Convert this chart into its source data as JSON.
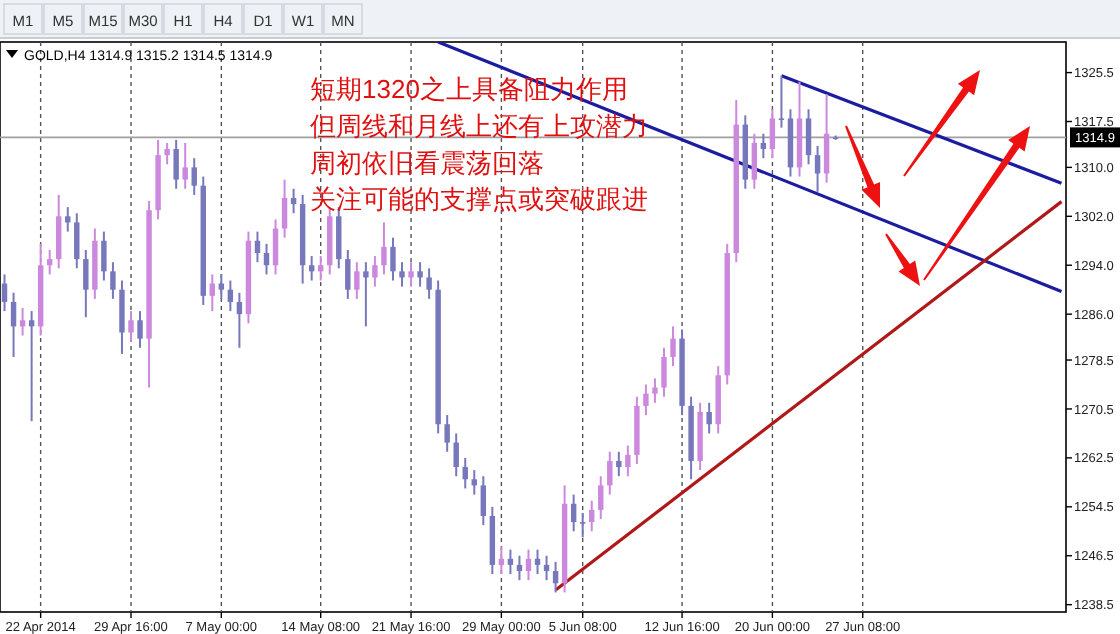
{
  "chart_data": {
    "type": "candlestick",
    "title": "GOLD,H4 1314.9 1315.2 1314.5 1314.9",
    "annotations": [
      "短期1320之上具备阻力作用",
      "但周线和月线上还有上攻潜力",
      "周初依旧看震荡回落",
      "关注可能的支撑点或突破跟进",
      "M1",
      "M5",
      "M15",
      "M30",
      "H1",
      "H4",
      "D1",
      "W1",
      "MN"
    ],
    "series": [
      {
        "ohlc": [
          [
            1291,
            1292.5,
            1286.5,
            1288
          ],
          [
            1288,
            1289.5,
            1279,
            1284
          ],
          [
            1284,
            1287,
            1282.5,
            1285
          ],
          [
            1285,
            1286.5,
            1268.5,
            1284
          ],
          [
            1284,
            1297.5,
            1282.5,
            1294
          ],
          [
            1294,
            1296.5,
            1292.5,
            1295
          ],
          [
            1295,
            1305.5,
            1293.5,
            1302
          ],
          [
            1302,
            1303.5,
            1299.5,
            1301
          ],
          [
            1301,
            1302.5,
            1293.5,
            1295
          ],
          [
            1295,
            1296.5,
            1285.5,
            1290
          ],
          [
            1290,
            1300,
            1288.5,
            1298
          ],
          [
            1298,
            1299.5,
            1291.5,
            1293
          ],
          [
            1293,
            1294.5,
            1288.5,
            1290
          ],
          [
            1290,
            1291.5,
            1279.5,
            1283
          ],
          [
            1283,
            1286.5,
            1281.5,
            1285
          ],
          [
            1285,
            1286.5,
            1280.5,
            1282
          ],
          [
            1282,
            1304.5,
            1274,
            1303
          ],
          [
            1303,
            1314.5,
            1301.5,
            1312
          ],
          [
            1312,
            1314,
            1310.5,
            1313
          ],
          [
            1313,
            1314.5,
            1306.5,
            1308
          ],
          [
            1308,
            1314,
            1306.5,
            1310
          ],
          [
            1310,
            1311.5,
            1305.5,
            1307
          ],
          [
            1307,
            1308.5,
            1287.5,
            1289
          ],
          [
            1289,
            1292.5,
            1286.5,
            1291
          ],
          [
            1291,
            1292.5,
            1288.5,
            1290
          ],
          [
            1290,
            1291.5,
            1286.5,
            1288
          ],
          [
            1288,
            1289.5,
            1280.5,
            1286
          ],
          [
            1286,
            1299.5,
            1284.5,
            1298
          ],
          [
            1298,
            1299.5,
            1294.5,
            1296
          ],
          [
            1296,
            1297.5,
            1292.5,
            1294
          ],
          [
            1294,
            1301.5,
            1292.5,
            1300
          ],
          [
            1300,
            1308,
            1298.5,
            1305
          ],
          [
            1305,
            1306.5,
            1302.5,
            1304
          ],
          [
            1304,
            1305.5,
            1291,
            1294
          ],
          [
            1294,
            1295.5,
            1291.5,
            1293
          ],
          [
            1293,
            1295.5,
            1291.5,
            1294
          ],
          [
            1294,
            1303.5,
            1292.5,
            1302
          ],
          [
            1302,
            1303.5,
            1293.5,
            1295
          ],
          [
            1295,
            1296.5,
            1288.5,
            1290
          ],
          [
            1290,
            1294.5,
            1288.5,
            1293
          ],
          [
            1293,
            1294.5,
            1284,
            1292
          ],
          [
            1292,
            1295.5,
            1290.5,
            1294
          ],
          [
            1294,
            1301,
            1292.5,
            1297
          ],
          [
            1297,
            1298.5,
            1291.5,
            1293
          ],
          [
            1293,
            1294.5,
            1290.5,
            1292
          ],
          [
            1292,
            1294.5,
            1290.5,
            1293
          ],
          [
            1293,
            1294.5,
            1290.5,
            1292
          ],
          [
            1292,
            1293.5,
            1288.5,
            1290
          ],
          [
            1290,
            1291.5,
            1266.5,
            1268
          ],
          [
            1268,
            1269.5,
            1263.5,
            1265
          ],
          [
            1265,
            1266.5,
            1259.5,
            1261
          ],
          [
            1261,
            1262.5,
            1257.5,
            1259
          ],
          [
            1259,
            1260.5,
            1256.5,
            1258
          ],
          [
            1258,
            1259.5,
            1251.5,
            1253
          ],
          [
            1253,
            1254.5,
            1243.5,
            1245
          ],
          [
            1245,
            1248,
            1243.5,
            1246
          ],
          [
            1246,
            1247.5,
            1243.5,
            1245
          ],
          [
            1245,
            1246.5,
            1242.5,
            1244
          ],
          [
            1244,
            1247.5,
            1242.5,
            1246
          ],
          [
            1246,
            1247.5,
            1243.5,
            1245
          ],
          [
            1245,
            1246.5,
            1242.5,
            1244
          ],
          [
            1244,
            1245.5,
            1240.5,
            1242
          ],
          [
            1242,
            1258,
            1240.5,
            1255
          ],
          [
            1255,
            1256.5,
            1250.5,
            1252
          ],
          [
            1252,
            1253.5,
            1249.5,
            1252
          ],
          [
            1252,
            1255.5,
            1250.5,
            1254
          ],
          [
            1254,
            1259.5,
            1252.5,
            1258
          ],
          [
            1258,
            1263.5,
            1256.5,
            1262
          ],
          [
            1262,
            1263.5,
            1259.5,
            1261
          ],
          [
            1261,
            1264.5,
            1259.5,
            1263
          ],
          [
            1263,
            1272.5,
            1261.5,
            1271
          ],
          [
            1271,
            1274.5,
            1269.5,
            1273
          ],
          [
            1273,
            1275.5,
            1271.5,
            1274
          ],
          [
            1274,
            1280.5,
            1272.5,
            1279
          ],
          [
            1279,
            1284,
            1277.5,
            1282
          ],
          [
            1282,
            1283.5,
            1269.5,
            1271
          ],
          [
            1271,
            1272.5,
            1259,
            1262
          ],
          [
            1262,
            1271.5,
            1260.5,
            1270
          ],
          [
            1270,
            1271.5,
            1266.5,
            1268
          ],
          [
            1268,
            1277.5,
            1266.5,
            1276
          ],
          [
            1276,
            1297.5,
            1274.5,
            1296
          ],
          [
            1296,
            1321,
            1294.5,
            1317
          ],
          [
            1317,
            1318.5,
            1306.5,
            1308
          ],
          [
            1308,
            1315.5,
            1306.5,
            1314
          ],
          [
            1314,
            1315.5,
            1311.5,
            1313
          ],
          [
            1313,
            1319.5,
            1311.5,
            1318
          ],
          [
            1318,
            1325,
            1316.5,
            1318
          ],
          [
            1318,
            1319.5,
            1308.5,
            1310
          ],
          [
            1310,
            1324,
            1308.5,
            1318
          ],
          [
            1318,
            1319.5,
            1310.5,
            1312
          ],
          [
            1312,
            1313.5,
            1306,
            1309
          ],
          [
            1309,
            1322,
            1307.5,
            1315.5
          ],
          [
            1314.9,
            1315.2,
            1314.5,
            1314.9
          ],
          null,
          null,
          null,
          null,
          null,
          null,
          null,
          null,
          null,
          null,
          null,
          null,
          null,
          null,
          null,
          null,
          null,
          null,
          null,
          null,
          null,
          null,
          null,
          null,
          null
        ],
        "colors": [
          "#7777bb",
          "#7777bb",
          "#cc88dd",
          "#7777bb",
          "#cc88dd",
          "#cc88dd",
          "#cc88dd",
          "#7777bb",
          "#7777bb",
          "#7777bb",
          "#cc88dd",
          "#7777bb",
          "#7777bb",
          "#7777bb",
          "#cc88dd",
          "#7777bb",
          "#cc88dd",
          "#cc88dd",
          "#cc88dd",
          "#7777bb",
          "#cc88dd",
          "#7777bb",
          "#7777bb",
          "#cc88dd",
          "#7777bb",
          "#7777bb",
          "#7777bb",
          "#cc88dd",
          "#7777bb",
          "#7777bb",
          "#cc88dd",
          "#cc88dd",
          "#7777bb",
          "#7777bb",
          "#7777bb",
          "#cc88dd",
          "#cc88dd",
          "#7777bb",
          "#7777bb",
          "#cc88dd",
          "#7777bb",
          "#cc88dd",
          "#cc88dd",
          "#7777bb",
          "#7777bb",
          "#cc88dd",
          "#7777bb",
          "#7777bb",
          "#7777bb",
          "#7777bb",
          "#7777bb",
          "#7777bb",
          "#7777bb",
          "#7777bb",
          "#7777bb",
          "#cc88dd",
          "#7777bb",
          "#7777bb",
          "#cc88dd",
          "#7777bb",
          "#7777bb",
          "#7777bb",
          "#cc88dd",
          "#7777bb",
          "#7777bb",
          "#cc88dd",
          "#cc88dd",
          "#cc88dd",
          "#7777bb",
          "#cc88dd",
          "#cc88dd",
          "#cc88dd",
          "#cc88dd",
          "#cc88dd",
          "#cc88dd",
          "#7777bb",
          "#7777bb",
          "#cc88dd",
          "#7777bb",
          "#cc88dd",
          "#cc88dd",
          "#cc88dd",
          "#7777bb",
          "#cc88dd",
          "#7777bb",
          "#cc88dd",
          "#7777bb",
          "#7777bb",
          "#cc88dd",
          "#7777bb",
          "#7777bb",
          "#cc88dd",
          "#7777bb",
          null,
          null,
          null,
          null,
          null,
          null,
          null,
          null,
          null,
          null,
          null,
          null,
          null,
          null,
          null,
          null,
          null,
          null,
          null,
          null,
          null,
          null,
          null,
          null,
          null
        ]
      },
      {
        "type": "line",
        "values": [
          null,
          null,
          null,
          null,
          null,
          null,
          null,
          null,
          null,
          null,
          null,
          null,
          null,
          null,
          null,
          null,
          null,
          null,
          null,
          null,
          null,
          null,
          null,
          null,
          null,
          null,
          null,
          null,
          null,
          null,
          null,
          null,
          null,
          null,
          null,
          null,
          null,
          null,
          null,
          null,
          null,
          null,
          null,
          null,
          null,
          null,
          null,
          null,
          1330.5,
          null,
          null,
          null,
          null,
          null,
          null,
          null,
          null,
          null,
          null,
          null,
          null,
          null,
          null,
          null,
          null,
          null,
          null,
          null,
          null,
          null,
          null,
          null,
          null,
          null,
          null,
          null,
          null,
          null,
          null,
          null,
          null,
          null,
          null,
          null,
          null,
          null,
          null,
          null,
          null,
          null,
          null,
          null,
          null,
          null,
          null,
          null,
          null,
          null,
          null,
          null,
          null,
          null,
          null,
          null,
          null,
          null,
          null,
          null,
          null,
          null,
          null,
          null,
          null,
          null,
          null,
          null,
          null,
          1289.7
        ],
        "color": "#1c1ca0"
      },
      {
        "type": "line",
        "values": [
          null,
          null,
          null,
          null,
          null,
          null,
          null,
          null,
          null,
          null,
          null,
          null,
          null,
          null,
          null,
          null,
          null,
          null,
          null,
          null,
          null,
          null,
          null,
          null,
          null,
          null,
          null,
          null,
          null,
          null,
          null,
          null,
          null,
          null,
          null,
          null,
          null,
          null,
          null,
          null,
          null,
          null,
          null,
          null,
          null,
          null,
          null,
          null,
          null,
          null,
          null,
          null,
          null,
          null,
          null,
          null,
          null,
          null,
          null,
          null,
          null,
          null,
          null,
          null,
          null,
          null,
          null,
          null,
          null,
          null,
          null,
          null,
          null,
          null,
          null,
          null,
          null,
          null,
          null,
          null,
          null,
          null,
          null,
          null,
          null,
          null,
          1325.0,
          null,
          null,
          null,
          null,
          null,
          null,
          null,
          null,
          null,
          null,
          null,
          null,
          null,
          null,
          null,
          null,
          null,
          null,
          null,
          null,
          null,
          null,
          null,
          null,
          null,
          null,
          null,
          null,
          null,
          null,
          1307.4
        ],
        "color": "#1c1ca0"
      },
      {
        "type": "line",
        "values": [
          null,
          null,
          null,
          null,
          null,
          null,
          null,
          null,
          null,
          null,
          null,
          null,
          null,
          null,
          null,
          null,
          null,
          null,
          null,
          null,
          null,
          null,
          null,
          null,
          null,
          null,
          null,
          null,
          null,
          null,
          null,
          null,
          null,
          null,
          null,
          null,
          null,
          null,
          null,
          null,
          null,
          null,
          null,
          null,
          null,
          null,
          null,
          null,
          null,
          null,
          null,
          null,
          null,
          null,
          null,
          null,
          null,
          null,
          null,
          null,
          null,
          1240.9,
          null,
          null,
          null,
          null,
          null,
          null,
          null,
          null,
          null,
          null,
          null,
          null,
          null,
          null,
          null,
          null,
          null,
          null,
          null,
          null,
          null,
          null,
          null,
          null,
          null,
          null,
          null,
          null,
          null,
          null,
          null,
          null,
          null,
          null,
          null,
          null,
          null,
          null,
          null,
          null,
          null,
          null,
          null,
          null,
          null,
          null,
          null,
          null,
          null,
          null,
          null,
          null,
          null,
          null,
          null,
          1304.4
        ],
        "color": "#b01818"
      }
    ],
    "categories": [
      null,
      null,
      null,
      null,
      "22 Apr 2014",
      null,
      null,
      null,
      null,
      null,
      null,
      null,
      null,
      null,
      "29 Apr 16:00",
      null,
      null,
      null,
      null,
      null,
      null,
      null,
      null,
      null,
      "7 May 00:00",
      null,
      null,
      null,
      null,
      null,
      null,
      null,
      null,
      null,
      null,
      "14 May 08:00",
      null,
      null,
      null,
      null,
      null,
      null,
      null,
      null,
      null,
      "21 May 16:00",
      null,
      null,
      null,
      null,
      null,
      null,
      null,
      null,
      null,
      "29 May 00:00",
      null,
      null,
      null,
      null,
      null,
      null,
      null,
      null,
      "5 Jun 08:00",
      null,
      null,
      null,
      null,
      null,
      null,
      null,
      null,
      null,
      null,
      "12 Jun 16:00",
      null,
      null,
      null,
      null,
      null,
      null,
      null,
      null,
      null,
      "20 Jun 00:00",
      null,
      null,
      null,
      null,
      null,
      null,
      null,
      null,
      null,
      "27 Jun 08:00",
      null,
      null,
      null,
      null,
      null,
      null,
      null,
      null,
      null,
      null,
      null,
      null,
      null,
      null,
      null,
      null,
      null,
      null,
      null,
      null,
      null,
      null
    ],
    "ylim": [
      1237.3,
      1330.5
    ],
    "yticks": [
      1238.5,
      1246.5,
      1254.5,
      1262.5,
      1270.5,
      1278.5,
      {
        "value": 1286,
        "label": "1286.0"
      },
      {
        "value": 1294,
        "label": "1294.0"
      },
      {
        "value": 1302,
        "label": "1302.0"
      },
      {
        "value": 1310,
        "label": "1310.0"
      },
      1317.5,
      1325.5
    ],
    "ref_lines": [
      {
        "axis": "y",
        "value": 1314.9,
        "label": "1314.9",
        "color": "#a0a0a0"
      }
    ],
    "grid": "x"
  }
}
